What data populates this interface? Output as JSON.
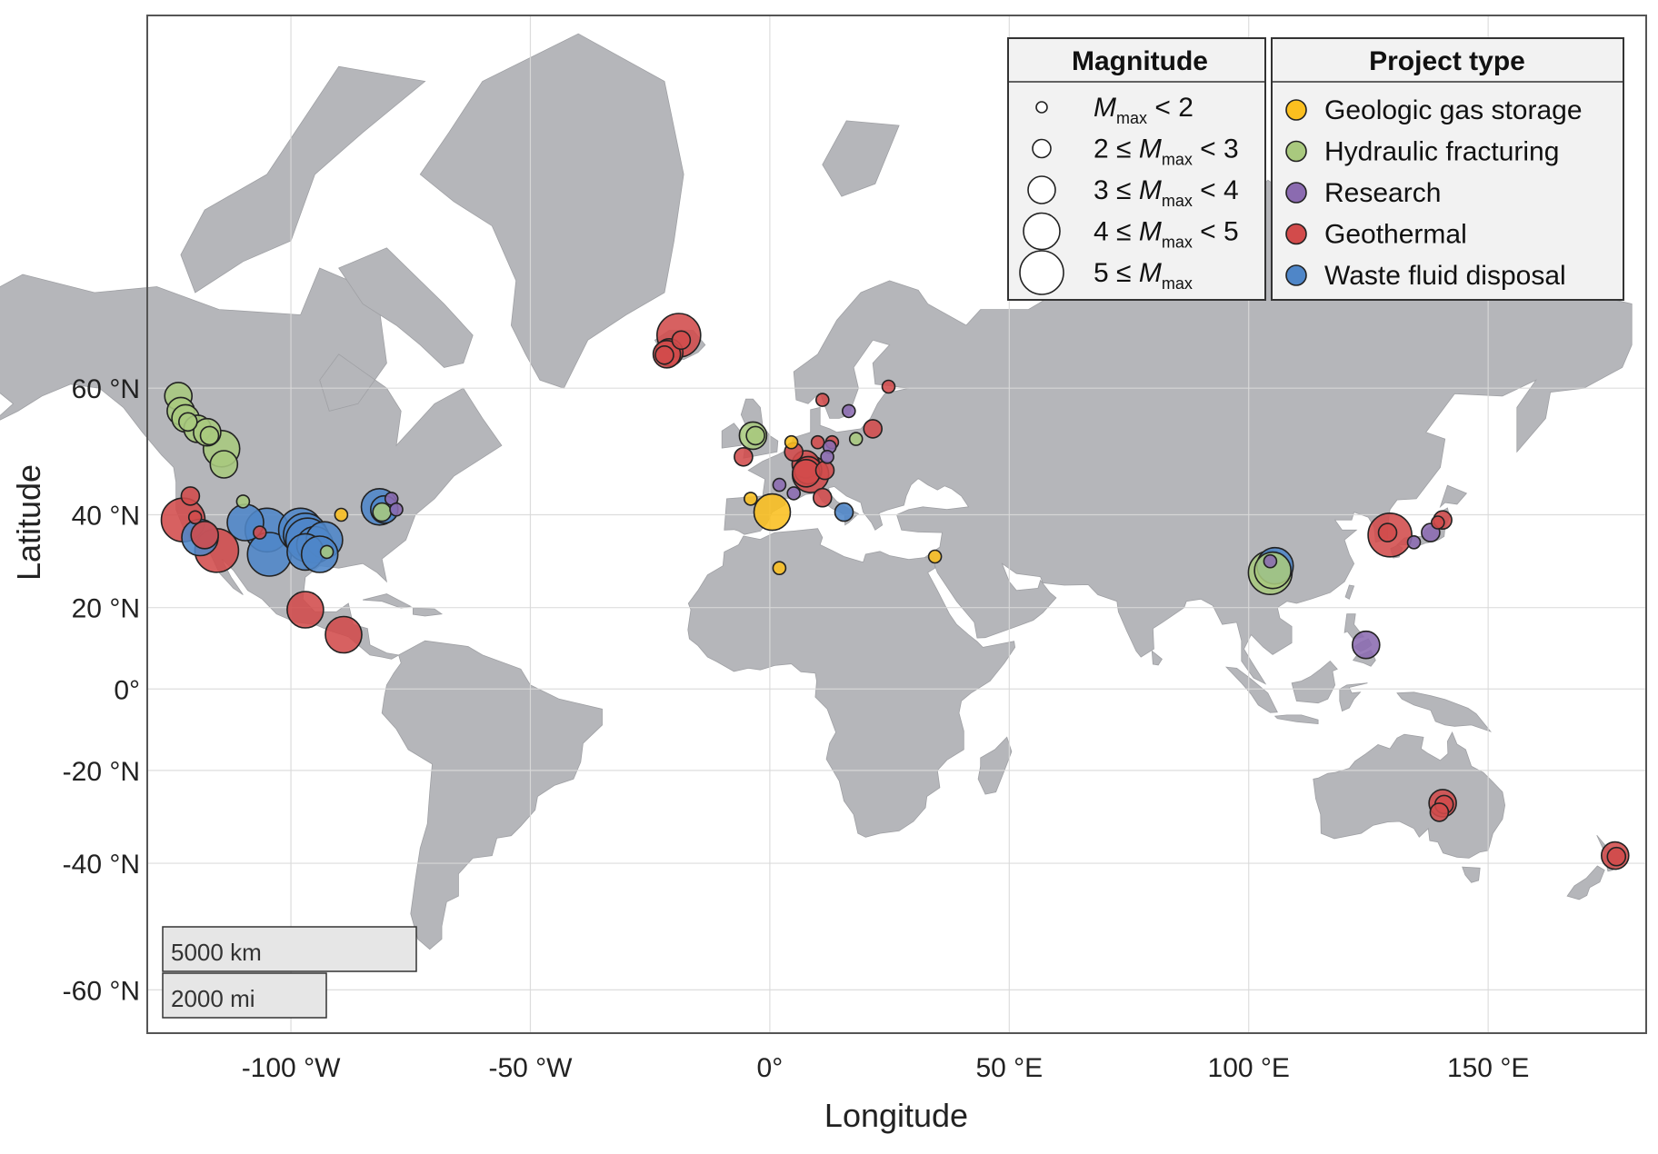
{
  "axes": {
    "xlabel": "Longitude",
    "ylabel": "Latitude",
    "xticks": [
      {
        "value": -100,
        "label": "-100 °W"
      },
      {
        "value": -50,
        "label": "-50 °W"
      },
      {
        "value": 0,
        "label": "0°"
      },
      {
        "value": 50,
        "label": "50 °E"
      },
      {
        "value": 100,
        "label": "100 °E"
      },
      {
        "value": 150,
        "label": "150 °E"
      }
    ],
    "yticks": [
      {
        "value": 60,
        "label": "60 °N"
      },
      {
        "value": 40,
        "label": "40 °N"
      },
      {
        "value": 20,
        "label": "20 °N"
      },
      {
        "value": 0,
        "label": "0°"
      },
      {
        "value": -20,
        "label": "-20 °N"
      },
      {
        "value": -40,
        "label": "-40 °N"
      },
      {
        "value": -60,
        "label": "-60 °N"
      }
    ],
    "xlim": [
      -130,
      183
    ],
    "ylim": [
      -65,
      84
    ],
    "grid": true,
    "projection": "mercator"
  },
  "legend_magnitude": {
    "title": "Magnitude",
    "items": [
      {
        "pre": "",
        "m": "M",
        "sub": "max",
        "post": " < 2"
      },
      {
        "pre": "2 ≤ ",
        "m": "M",
        "sub": "max",
        "post": " < 3"
      },
      {
        "pre": "3 ≤ ",
        "m": "M",
        "sub": "max",
        "post": " < 4"
      },
      {
        "pre": "4 ≤ ",
        "m": "M",
        "sub": "max",
        "post": " < 5"
      },
      {
        "pre": "5 ≤ ",
        "m": "M",
        "sub": "max",
        "post": ""
      }
    ]
  },
  "legend_type": {
    "title": "Project type",
    "items": [
      {
        "key": "gas",
        "label": "Geologic gas storage",
        "color": "#fbbf1f"
      },
      {
        "key": "frack",
        "label": "Hydraulic fracturing",
        "color": "#a9c97e"
      },
      {
        "key": "research",
        "label": "Research",
        "color": "#8b6bb0"
      },
      {
        "key": "geo",
        "label": "Geothermal",
        "color": "#d24b4b"
      },
      {
        "key": "waste",
        "label": "Waste fluid disposal",
        "color": "#4f86c8"
      }
    ]
  },
  "scale_bar": {
    "km_label": "5000 km",
    "mi_label": "2000 mi"
  },
  "colors": {
    "land": "#b5b6ba",
    "ocean": "#ffffff",
    "grid": "#d9d9d9",
    "border": "#444444"
  },
  "map_data": {
    "points": [
      {
        "lon": -123.5,
        "lat": 59.0,
        "type": "frack",
        "mag": 3
      },
      {
        "lon": -123.0,
        "lat": 57.0,
        "type": "frack",
        "mag": 3
      },
      {
        "lon": -122.0,
        "lat": 56.0,
        "type": "frack",
        "mag": 3
      },
      {
        "lon": -121.5,
        "lat": 55.5,
        "type": "frack",
        "mag": 2
      },
      {
        "lon": -119.5,
        "lat": 54.5,
        "type": "frack",
        "mag": 3
      },
      {
        "lon": -117.5,
        "lat": 54.0,
        "type": "frack",
        "mag": 3
      },
      {
        "lon": -117.0,
        "lat": 53.5,
        "type": "frack",
        "mag": 2
      },
      {
        "lon": -114.5,
        "lat": 51.5,
        "type": "frack",
        "mag": 4
      },
      {
        "lon": -114.0,
        "lat": 49.0,
        "type": "frack",
        "mag": 3
      },
      {
        "lon": -121.0,
        "lat": 43.5,
        "type": "geo",
        "mag": 2
      },
      {
        "lon": -122.5,
        "lat": 39.0,
        "type": "geo",
        "mag": 5
      },
      {
        "lon": -120.0,
        "lat": 39.5,
        "type": "geo",
        "mag": 1
      },
      {
        "lon": -119.0,
        "lat": 35.5,
        "type": "waste",
        "mag": 4
      },
      {
        "lon": -118.0,
        "lat": 36.0,
        "type": "geo",
        "mag": 3
      },
      {
        "lon": -115.5,
        "lat": 32.8,
        "type": "geo",
        "mag": 5
      },
      {
        "lon": -110.0,
        "lat": 42.5,
        "type": "frack",
        "mag": 1
      },
      {
        "lon": -109.5,
        "lat": 38.5,
        "type": "waste",
        "mag": 4
      },
      {
        "lon": -106.5,
        "lat": 36.5,
        "type": "geo",
        "mag": 1
      },
      {
        "lon": -105.0,
        "lat": 37.0,
        "type": "waste",
        "mag": 5
      },
      {
        "lon": -104.5,
        "lat": 32.0,
        "type": "waste",
        "mag": 5
      },
      {
        "lon": -98.0,
        "lat": 37.0,
        "type": "waste",
        "mag": 5
      },
      {
        "lon": -97.0,
        "lat": 36.0,
        "type": "waste",
        "mag": 5
      },
      {
        "lon": -96.5,
        "lat": 35.0,
        "type": "waste",
        "mag": 5
      },
      {
        "lon": -95.0,
        "lat": 34.0,
        "type": "waste",
        "mag": 4
      },
      {
        "lon": -93.0,
        "lat": 35.0,
        "type": "waste",
        "mag": 4
      },
      {
        "lon": -97.0,
        "lat": 32.5,
        "type": "waste",
        "mag": 4
      },
      {
        "lon": -94.0,
        "lat": 32.0,
        "type": "waste",
        "mag": 4
      },
      {
        "lon": -92.5,
        "lat": 32.5,
        "type": "frack",
        "mag": 1
      },
      {
        "lon": -81.5,
        "lat": 41.5,
        "type": "waste",
        "mag": 4
      },
      {
        "lon": -80.5,
        "lat": 41.0,
        "type": "waste",
        "mag": 3
      },
      {
        "lon": -79.0,
        "lat": 43.0,
        "type": "research",
        "mag": 1
      },
      {
        "lon": -78.0,
        "lat": 41.0,
        "type": "research",
        "mag": 1
      },
      {
        "lon": -81.0,
        "lat": 40.5,
        "type": "frack",
        "mag": 2
      },
      {
        "lon": -89.5,
        "lat": 40.0,
        "type": "gas",
        "mag": 1
      },
      {
        "lon": -97.0,
        "lat": 19.5,
        "type": "geo",
        "mag": 4
      },
      {
        "lon": -89.0,
        "lat": 13.5,
        "type": "geo",
        "mag": 4
      },
      {
        "lon": -19.0,
        "lat": 66.0,
        "type": "geo",
        "mag": 5
      },
      {
        "lon": -18.5,
        "lat": 65.5,
        "type": "geo",
        "mag": 2
      },
      {
        "lon": -21.0,
        "lat": 64.2,
        "type": "geo",
        "mag": 3
      },
      {
        "lon": -21.5,
        "lat": 64.0,
        "type": "geo",
        "mag": 3
      },
      {
        "lon": -22.0,
        "lat": 63.9,
        "type": "geo",
        "mag": 2
      },
      {
        "lon": -3.5,
        "lat": 53.5,
        "type": "frack",
        "mag": 3
      },
      {
        "lon": -3.0,
        "lat": 53.5,
        "type": "frack",
        "mag": 2
      },
      {
        "lon": -5.5,
        "lat": 50.2,
        "type": "geo",
        "mag": 2
      },
      {
        "lon": 4.5,
        "lat": 52.5,
        "type": "gas",
        "mag": 1
      },
      {
        "lon": 5.0,
        "lat": 51.0,
        "type": "geo",
        "mag": 2
      },
      {
        "lon": 7.5,
        "lat": 49.0,
        "type": "geo",
        "mag": 3
      },
      {
        "lon": 8.0,
        "lat": 48.0,
        "type": "geo",
        "mag": 3
      },
      {
        "lon": 7.6,
        "lat": 47.5,
        "type": "geo",
        "mag": 3
      },
      {
        "lon": 8.5,
        "lat": 47.3,
        "type": "geo",
        "mag": 4
      },
      {
        "lon": 11.5,
        "lat": 48.0,
        "type": "geo",
        "mag": 2
      },
      {
        "lon": 10.0,
        "lat": 52.5,
        "type": "geo",
        "mag": 1
      },
      {
        "lon": 13.0,
        "lat": 52.5,
        "type": "geo",
        "mag": 1
      },
      {
        "lon": 12.5,
        "lat": 51.8,
        "type": "research",
        "mag": 1
      },
      {
        "lon": 12.0,
        "lat": 50.2,
        "type": "research",
        "mag": 1
      },
      {
        "lon": 11.0,
        "lat": 58.5,
        "type": "geo",
        "mag": 1
      },
      {
        "lon": 16.5,
        "lat": 57.0,
        "type": "research",
        "mag": 1
      },
      {
        "lon": 18.0,
        "lat": 53.0,
        "type": "frack",
        "mag": 1
      },
      {
        "lon": 21.5,
        "lat": 54.5,
        "type": "geo",
        "mag": 2
      },
      {
        "lon": 24.8,
        "lat": 60.2,
        "type": "geo",
        "mag": 1
      },
      {
        "lon": 2.0,
        "lat": 45.5,
        "type": "research",
        "mag": 1
      },
      {
        "lon": 5.0,
        "lat": 44.0,
        "type": "research",
        "mag": 1
      },
      {
        "lon": -4.0,
        "lat": 43.0,
        "type": "gas",
        "mag": 1
      },
      {
        "lon": 0.5,
        "lat": 40.5,
        "type": "gas",
        "mag": 4
      },
      {
        "lon": 11.0,
        "lat": 43.2,
        "type": "geo",
        "mag": 2
      },
      {
        "lon": 15.5,
        "lat": 40.5,
        "type": "waste",
        "mag": 2
      },
      {
        "lon": 2.0,
        "lat": 29.0,
        "type": "gas",
        "mag": 1
      },
      {
        "lon": 34.5,
        "lat": 31.5,
        "type": "gas",
        "mag": 1
      },
      {
        "lon": 105.5,
        "lat": 29.5,
        "type": "waste",
        "mag": 4
      },
      {
        "lon": 105.0,
        "lat": 28.5,
        "type": "frack",
        "mag": 4
      },
      {
        "lon": 104.5,
        "lat": 28.0,
        "type": "frack",
        "mag": 5
      },
      {
        "lon": 104.5,
        "lat": 30.5,
        "type": "research",
        "mag": 1
      },
      {
        "lon": 129.5,
        "lat": 36.0,
        "type": "geo",
        "mag": 5
      },
      {
        "lon": 129.0,
        "lat": 36.5,
        "type": "geo",
        "mag": 2
      },
      {
        "lon": 134.5,
        "lat": 34.5,
        "type": "research",
        "mag": 1
      },
      {
        "lon": 138.0,
        "lat": 36.5,
        "type": "research",
        "mag": 2
      },
      {
        "lon": 140.5,
        "lat": 39.0,
        "type": "geo",
        "mag": 2
      },
      {
        "lon": 139.5,
        "lat": 38.5,
        "type": "geo",
        "mag": 1
      },
      {
        "lon": 124.5,
        "lat": 11.0,
        "type": "research",
        "mag": 3
      },
      {
        "lon": 140.5,
        "lat": -27.5,
        "type": "geo",
        "mag": 3
      },
      {
        "lon": 140.8,
        "lat": -27.8,
        "type": "geo",
        "mag": 2
      },
      {
        "lon": 139.8,
        "lat": -29.5,
        "type": "geo",
        "mag": 2
      },
      {
        "lon": 176.5,
        "lat": -38.5,
        "type": "geo",
        "mag": 3
      },
      {
        "lon": 176.8,
        "lat": -38.7,
        "type": "geo",
        "mag": 2
      }
    ]
  }
}
